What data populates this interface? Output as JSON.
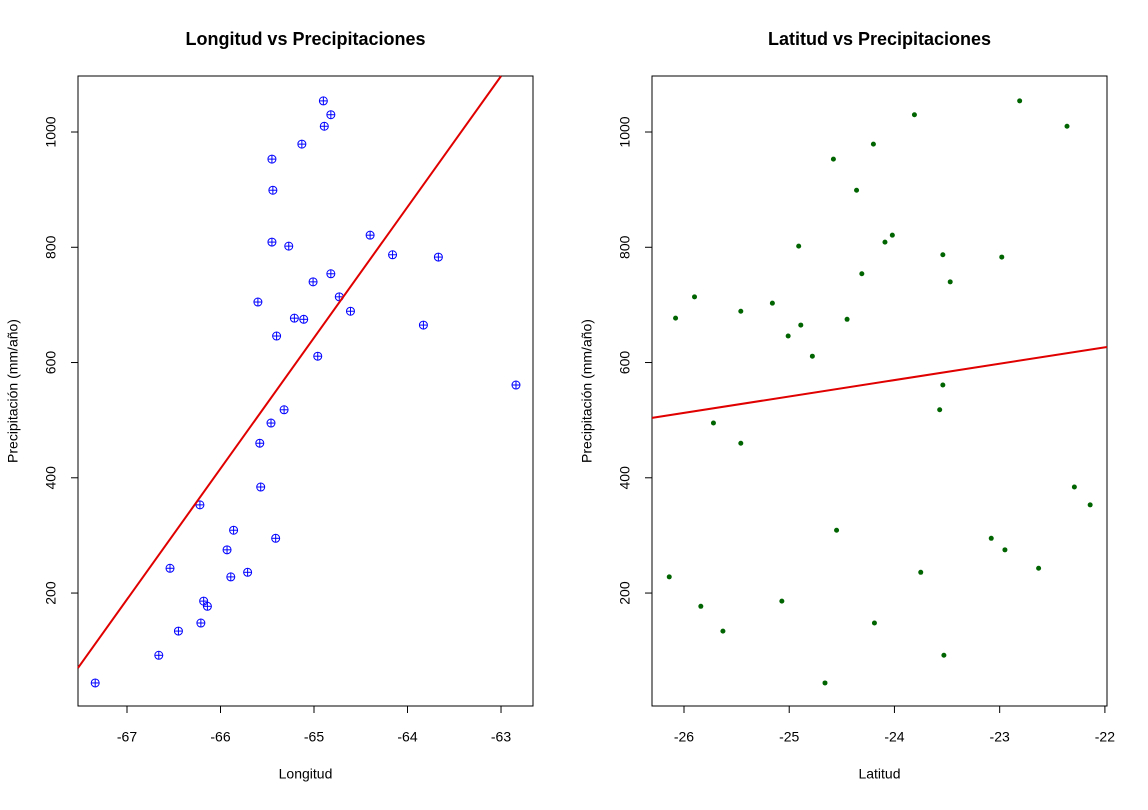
{
  "chart_data": [
    {
      "type": "scatter",
      "title": "Longitud vs Precipitaciones",
      "xlabel": "Longitud",
      "ylabel": "Precipitación (mm/año)",
      "marker": "circle-plus",
      "color": "#0000ff",
      "x": [
        -67.34,
        -66.66,
        -66.45,
        -66.21,
        -66.18,
        -66.14,
        -66.54,
        -66.22,
        -65.93,
        -65.89,
        -65.86,
        -65.71,
        -65.58,
        -65.57,
        -65.41,
        -65.46,
        -65.32,
        -65.6,
        -65.4,
        -65.27,
        -65.45,
        -65.21,
        -65.11,
        -65.01,
        -64.96,
        -64.82,
        -64.73,
        -64.61,
        -64.4,
        -64.16,
        -63.83,
        -63.67,
        -62.84,
        -65.44,
        -65.45,
        -65.13,
        -64.89,
        -64.82,
        -64.9
      ],
      "values": [
        44,
        92,
        134,
        148,
        186,
        177,
        243,
        353,
        275,
        228,
        309,
        236,
        460,
        384,
        295,
        495,
        518,
        705,
        646,
        802,
        809,
        677,
        675,
        740,
        611,
        754,
        714,
        689,
        821,
        787,
        665,
        783,
        561,
        899,
        953,
        979,
        1010,
        1030,
        1054
      ],
      "fit_line": {
        "color": "#e00000",
        "x": [
          -67.524,
          -63
        ],
        "y": [
          70,
          1097
        ]
      },
      "xlim": [
        -67.524,
        -62.658
      ],
      "ylim": [
        4,
        1097.2
      ],
      "xticks": [
        -67,
        -66,
        -65,
        -64,
        -63
      ],
      "yticks": [
        200,
        400,
        600,
        800,
        1000
      ]
    },
    {
      "type": "scatter",
      "title": "Latitud vs Precipitaciones",
      "xlabel": "Latitud",
      "ylabel": "Precipitación (mm/año)",
      "marker": "dot",
      "color": "#006400",
      "x": [
        -26.14,
        -26.08,
        -25.9,
        -25.84,
        -25.72,
        -25.63,
        -25.46,
        -25.46,
        -25.16,
        -24.91,
        -24.89,
        -25.07,
        -25.01,
        -24.78,
        -24.66,
        -24.58,
        -24.55,
        -24.45,
        -24.36,
        -24.31,
        -24.2,
        -24.19,
        -24.09,
        -24.02,
        -23.81,
        -23.75,
        -23.54,
        -23.57,
        -23.54,
        -23.53,
        -23.47,
        -23.08,
        -22.95,
        -22.98,
        -22.81,
        -22.63,
        -22.36,
        -22.29,
        -22.14
      ],
      "values": [
        228,
        677,
        714,
        177,
        495,
        134,
        689,
        460,
        703,
        802,
        665,
        186,
        646,
        611,
        44,
        953,
        309,
        675,
        899,
        754,
        979,
        148,
        809,
        821,
        1030,
        236,
        787,
        518,
        561,
        92,
        740,
        295,
        275,
        783,
        1054,
        243,
        1010,
        384,
        353
      ],
      "fit_line": {
        "color": "#e00000",
        "x": [
          -26.304,
          -21.98
        ],
        "y": [
          504,
          627
        ]
      },
      "xlim": [
        -26.304,
        -21.98
      ],
      "ylim": [
        4,
        1097.2
      ],
      "xticks": [
        -26,
        -25,
        -24,
        -23,
        -22
      ],
      "yticks": [
        200,
        400,
        600,
        800,
        1000
      ]
    }
  ]
}
